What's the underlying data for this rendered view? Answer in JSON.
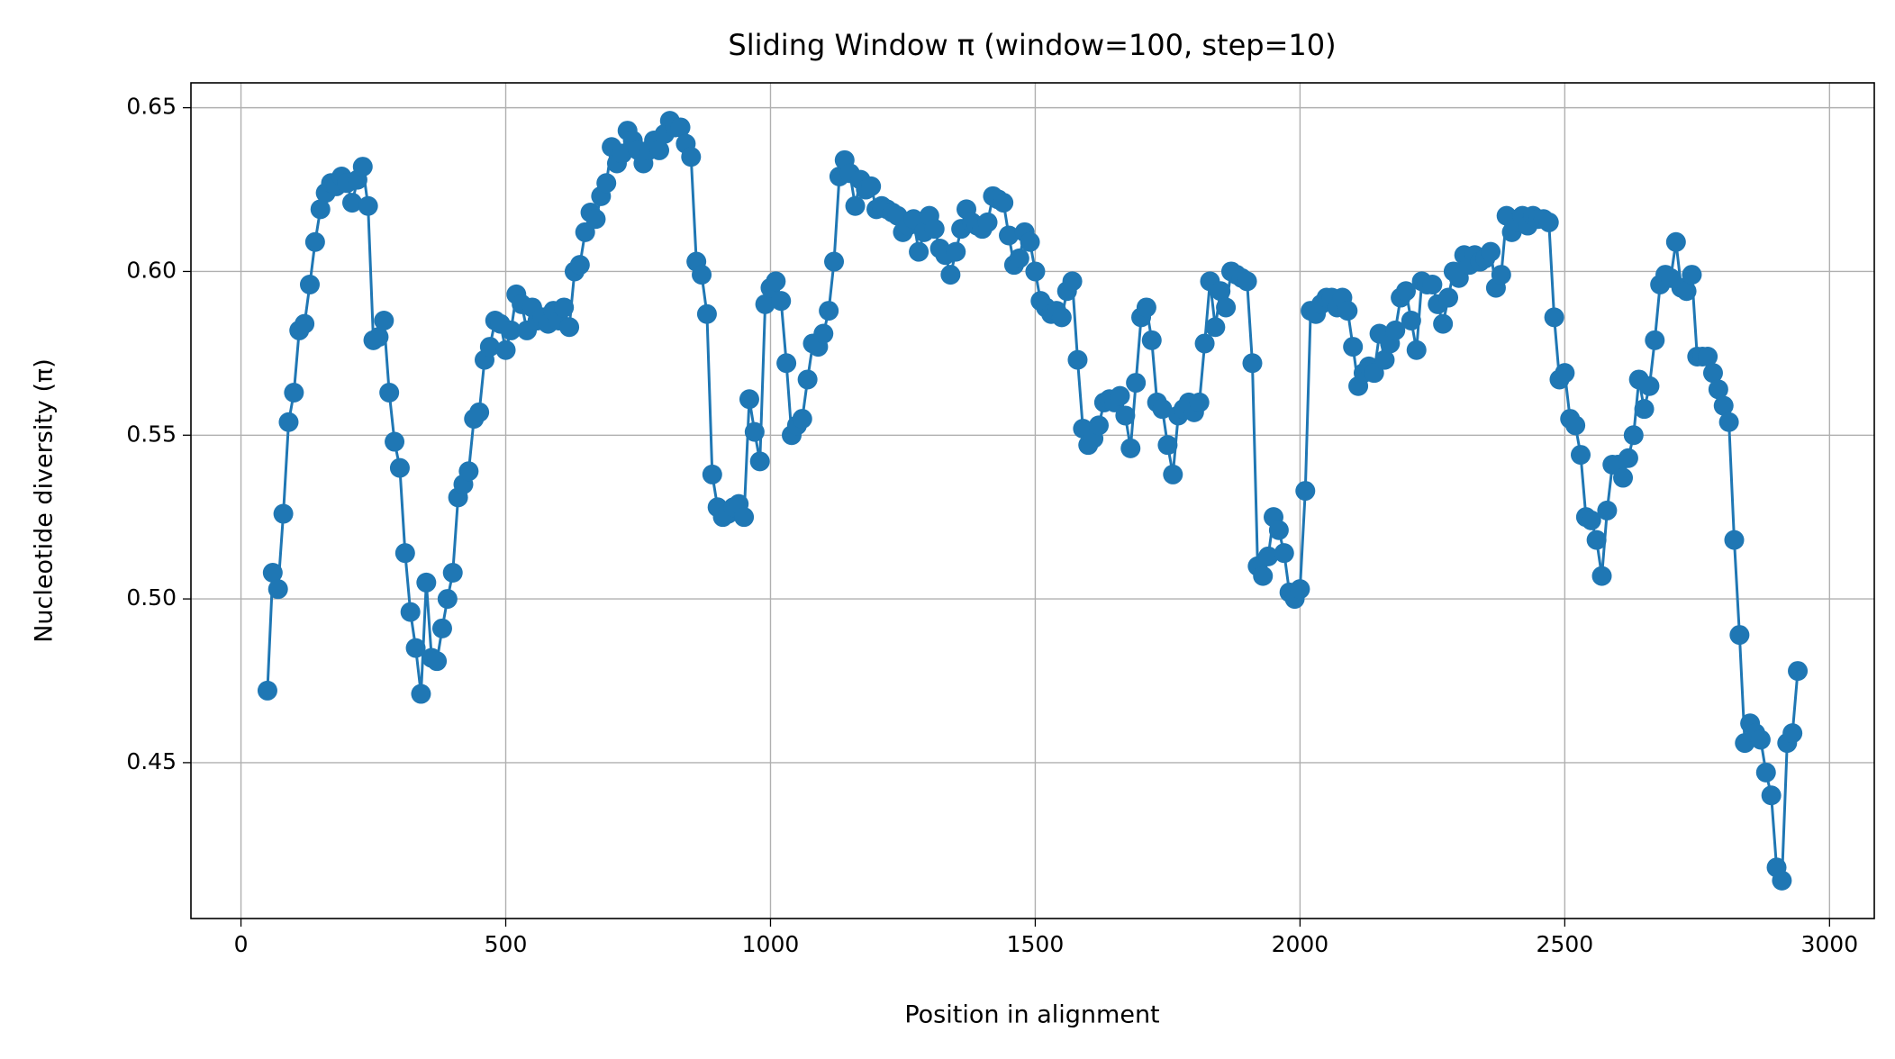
{
  "chart_data": {
    "type": "line",
    "title": "Sliding Window π (window=100, step=10)",
    "x_label": "Position in alignment",
    "y_label": "Nucleotide diversity (π)",
    "x": [
      50,
      60,
      70,
      80,
      90,
      100,
      110,
      120,
      130,
      140,
      150,
      160,
      170,
      180,
      190,
      200,
      210,
      220,
      230,
      240,
      250,
      260,
      270,
      280,
      290,
      300,
      310,
      320,
      330,
      340,
      350,
      360,
      370,
      380,
      390,
      400,
      410,
      420,
      430,
      440,
      450,
      460,
      470,
      480,
      490,
      500,
      510,
      520,
      530,
      540,
      550,
      560,
      570,
      580,
      590,
      600,
      610,
      620,
      630,
      640,
      650,
      660,
      670,
      680,
      690,
      700,
      710,
      720,
      730,
      740,
      750,
      760,
      770,
      780,
      790,
      800,
      810,
      820,
      830,
      840,
      850,
      860,
      870,
      880,
      890,
      900,
      910,
      920,
      930,
      940,
      950,
      960,
      970,
      980,
      990,
      1000,
      1010,
      1020,
      1030,
      1040,
      1050,
      1060,
      1070,
      1080,
      1090,
      1100,
      1110,
      1120,
      1130,
      1140,
      1150,
      1160,
      1170,
      1180,
      1190,
      1200,
      1210,
      1220,
      1230,
      1240,
      1250,
      1260,
      1270,
      1280,
      1290,
      1300,
      1310,
      1320,
      1330,
      1340,
      1350,
      1360,
      1370,
      1380,
      1390,
      1400,
      1410,
      1420,
      1430,
      1440,
      1450,
      1460,
      1470,
      1480,
      1490,
      1500,
      1510,
      1520,
      1530,
      1540,
      1550,
      1560,
      1570,
      1580,
      1590,
      1600,
      1610,
      1620,
      1630,
      1640,
      1650,
      1660,
      1670,
      1680,
      1690,
      1700,
      1710,
      1720,
      1730,
      1740,
      1750,
      1760,
      1770,
      1780,
      1790,
      1800,
      1810,
      1820,
      1830,
      1840,
      1850,
      1860,
      1870,
      1880,
      1890,
      1900,
      1910,
      1920,
      1930,
      1940,
      1950,
      1960,
      1970,
      1980,
      1990,
      2000,
      2010,
      2020,
      2030,
      2040,
      2050,
      2060,
      2070,
      2080,
      2090,
      2100,
      2110,
      2120,
      2130,
      2140,
      2150,
      2160,
      2170,
      2180,
      2190,
      2200,
      2210,
      2220,
      2230,
      2240,
      2250,
      2260,
      2270,
      2280,
      2290,
      2300,
      2310,
      2320,
      2330,
      2340,
      2350,
      2360,
      2370,
      2380,
      2390,
      2400,
      2410,
      2420,
      2430,
      2440,
      2450,
      2460,
      2470,
      2480,
      2490,
      2500,
      2510,
      2520,
      2530,
      2540,
      2550,
      2560,
      2570,
      2580,
      2590,
      2600,
      2610,
      2620,
      2630,
      2640,
      2650,
      2660,
      2670,
      2680,
      2690,
      2700,
      2710,
      2720,
      2730,
      2740,
      2750,
      2760,
      2770,
      2780,
      2790,
      2800,
      2810,
      2820,
      2830,
      2840,
      2850,
      2860,
      2870,
      2880,
      2890,
      2900,
      2910,
      2920,
      2930,
      2940
    ],
    "series": [
      {
        "color": "#1f77b4",
        "values": [
          0.472,
          0.508,
          0.503,
          0.526,
          0.554,
          0.563,
          0.582,
          0.584,
          0.596,
          0.609,
          0.619,
          0.624,
          0.627,
          0.626,
          0.629,
          0.627,
          0.621,
          0.628,
          0.632,
          0.62,
          0.579,
          0.58,
          0.585,
          0.563,
          0.548,
          0.54,
          0.514,
          0.496,
          0.485,
          0.471,
          0.505,
          0.482,
          0.481,
          0.491,
          0.5,
          0.508,
          0.531,
          0.535,
          0.539,
          0.555,
          0.557,
          0.573,
          0.577,
          0.585,
          0.584,
          0.576,
          0.582,
          0.593,
          0.59,
          0.582,
          0.589,
          0.585,
          0.586,
          0.584,
          0.588,
          0.585,
          0.589,
          0.583,
          0.6,
          0.602,
          0.612,
          0.618,
          0.616,
          0.623,
          0.627,
          0.638,
          0.633,
          0.636,
          0.643,
          0.64,
          0.637,
          0.633,
          0.637,
          0.64,
          0.637,
          0.642,
          0.646,
          0.644,
          0.644,
          0.639,
          0.635,
          0.603,
          0.599,
          0.587,
          0.538,
          0.528,
          0.525,
          0.526,
          0.528,
          0.529,
          0.525,
          0.561,
          0.551,
          0.542,
          0.59,
          0.595,
          0.597,
          0.591,
          0.572,
          0.55,
          0.553,
          0.555,
          0.567,
          0.578,
          0.577,
          0.581,
          0.588,
          0.603,
          0.629,
          0.634,
          0.63,
          0.62,
          0.628,
          0.625,
          0.626,
          0.619,
          0.62,
          0.619,
          0.618,
          0.617,
          0.612,
          0.614,
          0.616,
          0.606,
          0.612,
          0.617,
          0.613,
          0.607,
          0.605,
          0.599,
          0.606,
          0.613,
          0.619,
          0.615,
          0.614,
          0.613,
          0.615,
          0.623,
          0.622,
          0.621,
          0.611,
          0.602,
          0.604,
          0.612,
          0.609,
          0.6,
          0.591,
          0.589,
          0.587,
          0.588,
          0.586,
          0.594,
          0.597,
          0.573,
          0.552,
          0.547,
          0.549,
          0.553,
          0.56,
          0.561,
          0.56,
          0.562,
          0.556,
          0.546,
          0.566,
          0.586,
          0.589,
          0.579,
          0.56,
          0.558,
          0.547,
          0.538,
          0.556,
          0.558,
          0.56,
          0.557,
          0.56,
          0.578,
          0.597,
          0.583,
          0.594,
          0.589,
          0.6,
          0.599,
          0.598,
          0.597,
          0.572,
          0.51,
          0.507,
          0.513,
          0.525,
          0.521,
          0.514,
          0.502,
          0.5,
          0.503,
          0.533,
          0.588,
          0.587,
          0.59,
          0.592,
          0.592,
          0.589,
          0.592,
          0.588,
          0.577,
          0.565,
          0.569,
          0.571,
          0.569,
          0.581,
          0.573,
          0.578,
          0.582,
          0.592,
          0.594,
          0.585,
          0.576,
          0.597,
          0.596,
          0.596,
          0.59,
          0.584,
          0.592,
          0.6,
          0.598,
          0.605,
          0.602,
          0.605,
          0.603,
          0.604,
          0.606,
          0.595,
          0.599,
          0.617,
          0.612,
          0.615,
          0.617,
          0.614,
          0.617,
          0.616,
          0.616,
          0.615,
          0.586,
          0.567,
          0.569,
          0.555,
          0.553,
          0.544,
          0.525,
          0.524,
          0.518,
          0.507,
          0.527,
          0.541,
          0.541,
          0.537,
          0.543,
          0.55,
          0.567,
          0.558,
          0.565,
          0.579,
          0.596,
          0.599,
          0.598,
          0.609,
          0.595,
          0.594,
          0.599,
          0.574,
          0.574,
          0.574,
          0.569,
          0.564,
          0.559,
          0.554,
          0.518,
          0.489,
          0.456,
          0.462,
          0.459,
          0.457,
          0.447,
          0.44,
          0.418,
          0.414,
          0.456,
          0.459,
          0.478
        ]
      }
    ],
    "xlim": [
      -94.5,
      3084.5
    ],
    "ylim": [
      0.4024,
      0.6576
    ],
    "xticks": [
      0,
      500,
      1000,
      1500,
      2000,
      2500,
      3000
    ],
    "yticks": [
      0.45,
      {
        "value": 0.5,
        "label": "0.50"
      },
      0.55,
      {
        "value": 0.6,
        "label": "0.60"
      },
      0.65
    ],
    "grid": true,
    "markers": true
  }
}
